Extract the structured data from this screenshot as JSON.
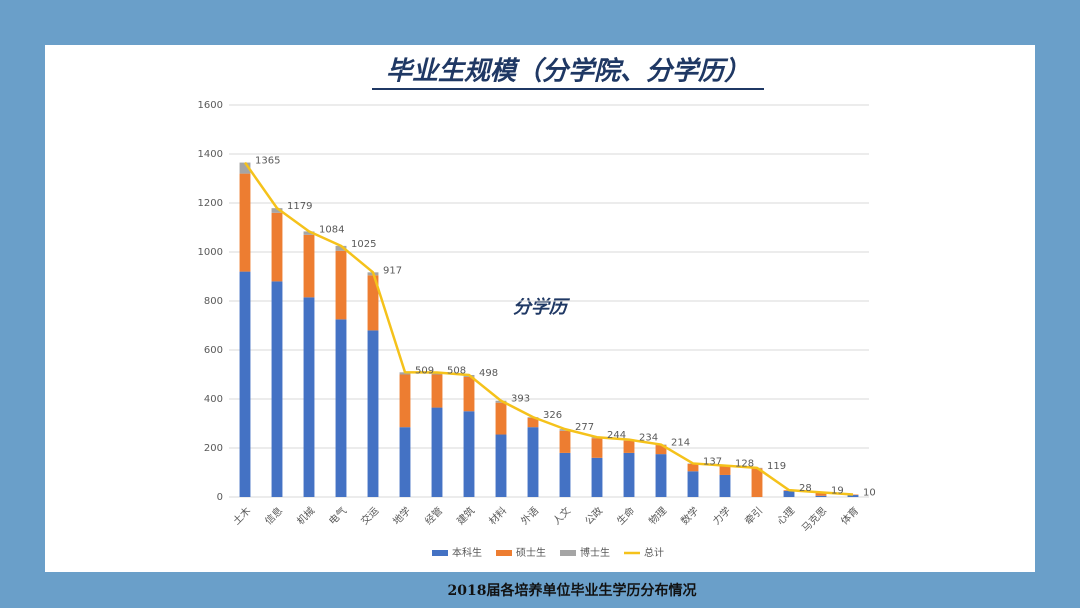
{
  "chart_data": {
    "type": "bar",
    "stacked": true,
    "title": "毕业生规模（分学院、分学历）",
    "annotation": "分学历",
    "caption": "2018届各培养单位毕业生学历分布情况",
    "categories": [
      "土木",
      "信息",
      "机械",
      "电气",
      "交运",
      "地学",
      "经管",
      "建筑",
      "材料",
      "外语",
      "人文",
      "公政",
      "生命",
      "物理",
      "数学",
      "力学",
      "牵引",
      "心理",
      "马克思",
      "体育"
    ],
    "series": [
      {
        "name": "本科生",
        "color": "#4472c4",
        "values": [
          920,
          880,
          815,
          725,
          680,
          285,
          365,
          350,
          255,
          285,
          180,
          160,
          180,
          175,
          105,
          90,
          0,
          25,
          5,
          8
        ]
      },
      {
        "name": "硕士生",
        "color": "#ed7d31",
        "values": [
          400,
          280,
          255,
          280,
          225,
          215,
          135,
          140,
          130,
          38,
          90,
          80,
          50,
          37,
          30,
          36,
          117,
          3,
          13,
          2
        ]
      },
      {
        "name": "博士生",
        "color": "#a5a5a5",
        "values": [
          45,
          19,
          14,
          20,
          12,
          9,
          8,
          8,
          8,
          3,
          7,
          4,
          4,
          2,
          2,
          2,
          2,
          0,
          1,
          0
        ]
      },
      {
        "name": "总计",
        "color": "#f5c21b",
        "type": "line",
        "values": [
          1365,
          1179,
          1084,
          1025,
          917,
          509,
          508,
          498,
          393,
          326,
          277,
          244,
          234,
          214,
          137,
          128,
          119,
          28,
          19,
          10
        ]
      }
    ],
    "ylim": [
      0,
      1600
    ],
    "yticks": [
      0,
      200,
      400,
      600,
      800,
      1000,
      1200,
      1400,
      1600
    ],
    "grid": true,
    "legend": "bottom"
  }
}
